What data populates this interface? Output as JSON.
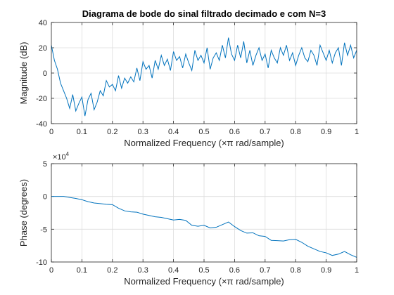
{
  "chart_data": [
    {
      "type": "line",
      "title": "Diagrama de bode do sinal filtrado decimado e com N=3",
      "xlabel": "Normalized Frequency  (×π rad/sample)",
      "ylabel": "Magnitude (dB)",
      "xlim": [
        0,
        1
      ],
      "ylim": [
        -40,
        40
      ],
      "grid": true,
      "xticks": [
        "0",
        "0.1",
        "0.2",
        "0.3",
        "0.4",
        "0.5",
        "0.6",
        "0.7",
        "0.8",
        "0.9",
        "1"
      ],
      "yticks": [
        "-40",
        "-20",
        "0",
        "20",
        "40"
      ],
      "series": [
        {
          "color": "#0072bd",
          "x": [
            0.0,
            0.01,
            0.02,
            0.03,
            0.04,
            0.05,
            0.06,
            0.07,
            0.08,
            0.09,
            0.1,
            0.11,
            0.12,
            0.13,
            0.14,
            0.15,
            0.16,
            0.17,
            0.18,
            0.19,
            0.2,
            0.21,
            0.22,
            0.23,
            0.24,
            0.25,
            0.26,
            0.27,
            0.28,
            0.29,
            0.3,
            0.31,
            0.32,
            0.33,
            0.34,
            0.35,
            0.36,
            0.37,
            0.38,
            0.39,
            0.4,
            0.41,
            0.42,
            0.43,
            0.44,
            0.45,
            0.46,
            0.47,
            0.48,
            0.49,
            0.5,
            0.51,
            0.52,
            0.53,
            0.54,
            0.55,
            0.56,
            0.57,
            0.58,
            0.59,
            0.6,
            0.61,
            0.62,
            0.63,
            0.64,
            0.65,
            0.66,
            0.67,
            0.68,
            0.69,
            0.7,
            0.71,
            0.72,
            0.73,
            0.74,
            0.75,
            0.76,
            0.77,
            0.78,
            0.79,
            0.8,
            0.81,
            0.82,
            0.83,
            0.84,
            0.85,
            0.86,
            0.87,
            0.88,
            0.89,
            0.9,
            0.91,
            0.92,
            0.93,
            0.94,
            0.95,
            0.96,
            0.97,
            0.98,
            0.99,
            1.0
          ],
          "values": [
            22,
            10,
            3,
            -8,
            -14,
            -20,
            -28,
            -17,
            -30,
            -24,
            -19,
            -34,
            -21,
            -16,
            -29,
            -23,
            -14,
            -18,
            -6,
            -11,
            -9,
            -14,
            -2,
            -12,
            -4,
            -8,
            -3,
            -7,
            4,
            -6,
            9,
            3,
            6,
            -4,
            10,
            3,
            14,
            6,
            11,
            2,
            17,
            10,
            13,
            4,
            15,
            8,
            2,
            18,
            10,
            14,
            8,
            20,
            3,
            12,
            16,
            10,
            22,
            12,
            28,
            15,
            10,
            22,
            12,
            25,
            8,
            18,
            6,
            14,
            20,
            10,
            15,
            4,
            18,
            12,
            8,
            20,
            14,
            22,
            10,
            16,
            6,
            14,
            20,
            12,
            9,
            18,
            14,
            6,
            22,
            16,
            10,
            18,
            8,
            16,
            20,
            6,
            24,
            14,
            22,
            12,
            18
          ]
        }
      ]
    },
    {
      "type": "line",
      "title": "",
      "xlabel": "Normalized Frequency  (×π rad/sample)",
      "ylabel": "Phase (degrees)",
      "xlim": [
        0,
        1
      ],
      "ylim": [
        -100000,
        50000
      ],
      "grid": true,
      "scale_exponent": "×10",
      "scale_power": "4",
      "xticks": [
        "0",
        "0.1",
        "0.2",
        "0.3",
        "0.4",
        "0.5",
        "0.6",
        "0.7",
        "0.8",
        "0.9",
        "1"
      ],
      "yticks": [
        "-10",
        "-5",
        "0",
        "5"
      ],
      "series": [
        {
          "color": "#0072bd",
          "x": [
            0.0,
            0.02,
            0.04,
            0.06,
            0.08,
            0.1,
            0.12,
            0.14,
            0.16,
            0.18,
            0.2,
            0.22,
            0.24,
            0.26,
            0.28,
            0.3,
            0.32,
            0.34,
            0.36,
            0.38,
            0.4,
            0.42,
            0.44,
            0.46,
            0.48,
            0.5,
            0.52,
            0.54,
            0.56,
            0.58,
            0.6,
            0.62,
            0.64,
            0.66,
            0.68,
            0.7,
            0.72,
            0.74,
            0.76,
            0.78,
            0.8,
            0.82,
            0.84,
            0.86,
            0.88,
            0.9,
            0.92,
            0.94,
            0.96,
            0.98,
            1.0
          ],
          "values": [
            0,
            0,
            0,
            -1500,
            -3000,
            -5000,
            -8000,
            -10000,
            -11000,
            -12000,
            -12500,
            -18000,
            -22000,
            -23500,
            -24000,
            -27000,
            -29000,
            -31000,
            -32000,
            -34000,
            -36000,
            -35000,
            -36500,
            -44000,
            -45500,
            -44000,
            -48000,
            -47000,
            -43000,
            -39000,
            -46000,
            -52000,
            -56000,
            -55500,
            -60000,
            -61000,
            -67000,
            -67500,
            -68000,
            -66000,
            -65500,
            -70000,
            -76000,
            -80000,
            -84000,
            -86000,
            -90000,
            -88000,
            -84000,
            -89000,
            -93000
          ]
        }
      ]
    }
  ]
}
